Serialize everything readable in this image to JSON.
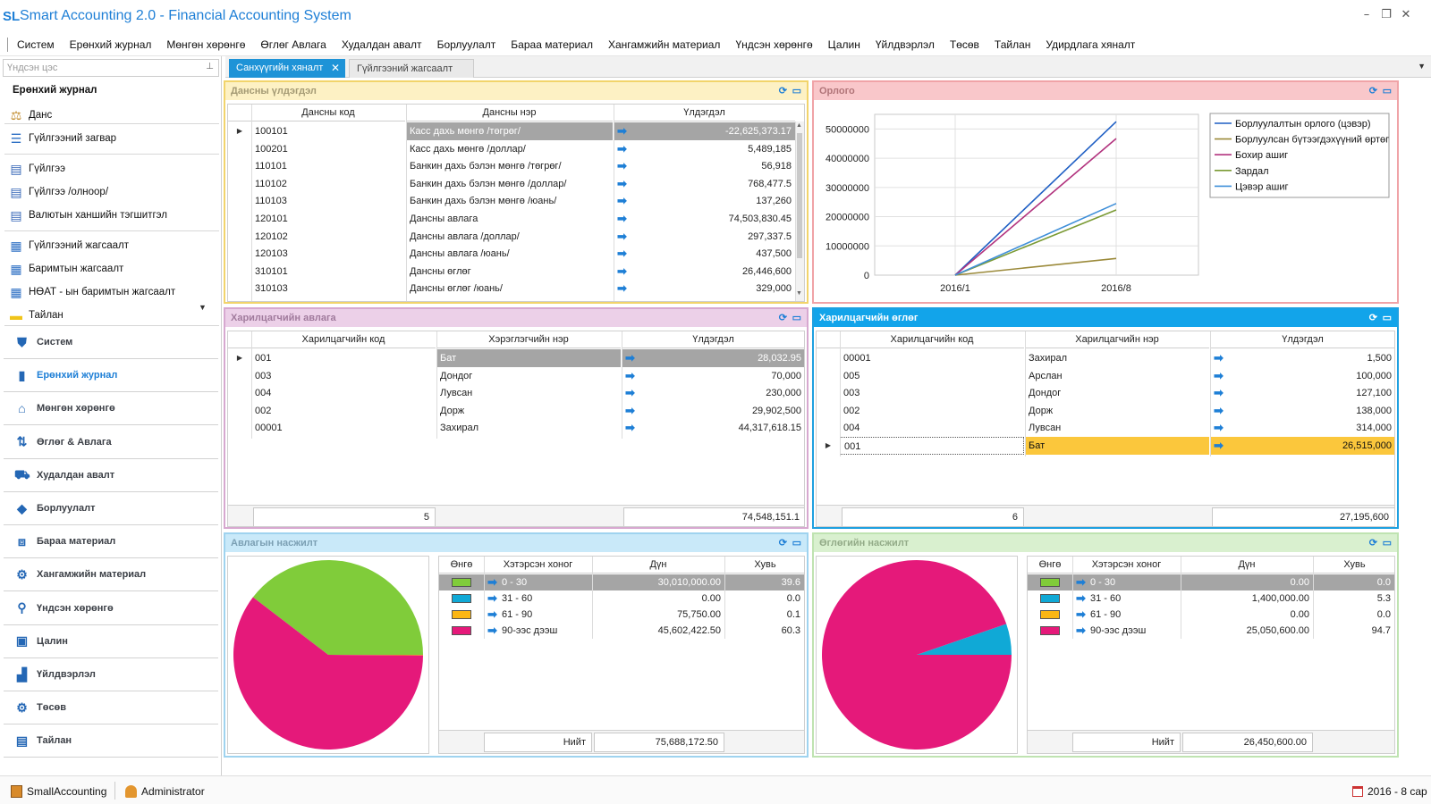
{
  "titlebar": {
    "logo": "SL",
    "title": "Smart Accounting 2.0 - Financial Accounting System"
  },
  "menu": [
    "Систем",
    "Ерөнхий журнал",
    "Мөнгөн хөрөнгө",
    "Өглөг Авлага",
    "Худалдан авалт",
    "Борлуулалт",
    "Бараа материал",
    "Хангамжийн материал",
    "Үндсэн хөрөнгө",
    "Цалин",
    "Үйлдвэрлэл",
    "Төсөв",
    "Тайлан",
    "Удирдлага хяналт"
  ],
  "sidebar": {
    "search_placeholder": "Үндсэн цэс",
    "group_title": "Ерөнхий журнал",
    "items": [
      {
        "label": "Данс",
        "icon": "scales-icon"
      },
      {
        "label": "Гүйлгээний загвар",
        "icon": "template-icon"
      },
      {
        "label": "Гүйлгээ",
        "icon": "document-icon"
      },
      {
        "label": "Гүйлгээ /олноор/",
        "icon": "document-icon"
      },
      {
        "label": "Валютын ханшийн тэгшитгэл",
        "icon": "document-icon"
      },
      {
        "label": "Гүйлгээний жагсаалт",
        "icon": "table-icon"
      },
      {
        "label": "Баримтын жагсаалт",
        "icon": "table-icon"
      },
      {
        "label": "НӨАТ - ын баримтын жагсаалт",
        "icon": "table-icon"
      },
      {
        "label": "Тайлан",
        "icon": "folder-icon"
      }
    ],
    "modules": [
      {
        "label": "Систем",
        "icon": "shield-icon",
        "active": false
      },
      {
        "label": "Ерөнхий журнал",
        "icon": "journal-icon",
        "active": true
      },
      {
        "label": "Мөнгөн хөрөнгө",
        "icon": "bank-icon",
        "active": false
      },
      {
        "label": "Өглөг & Авлага",
        "icon": "swap-icon",
        "active": false
      },
      {
        "label": "Худалдан авалт",
        "icon": "cart-icon",
        "active": false
      },
      {
        "label": "Борлуулалт",
        "icon": "tag-icon",
        "active": false
      },
      {
        "label": "Бараа материал",
        "icon": "boxes-icon",
        "active": false
      },
      {
        "label": "Хангамжийн материал",
        "icon": "gear-icon",
        "active": false
      },
      {
        "label": "Үндсэн хөрөнгө",
        "icon": "person-icon",
        "active": false
      },
      {
        "label": "Цалин",
        "icon": "payroll-icon",
        "active": false
      },
      {
        "label": "Үйлдвэрлэл",
        "icon": "factory-icon",
        "active": false
      },
      {
        "label": "Төсөв",
        "icon": "budget-icon",
        "active": false
      },
      {
        "label": "Тайлан",
        "icon": "report-icon",
        "active": false
      }
    ]
  },
  "tabs": [
    {
      "label": "Санхүүгийн хяналт",
      "active": true
    },
    {
      "label": "Гүйлгээний жагсаалт",
      "active": false
    }
  ],
  "account_balance": {
    "title": "Дансны үлдэгдэл",
    "columns": [
      "Дансны код",
      "Дансны нэр",
      "Үлдэгдэл"
    ],
    "rows": [
      {
        "code": "100101",
        "name": "Касс дахь мөнгө /төгрөг/",
        "value": "-22,625,373.17"
      },
      {
        "code": "100201",
        "name": "Касс дахь мөнгө /доллар/",
        "value": "5,489,185"
      },
      {
        "code": "110101",
        "name": "Банкин дахь бэлэн мөнгө /төгрөг/",
        "value": "56,918"
      },
      {
        "code": "110102",
        "name": "Банкин дахь бэлэн мөнгө /доллар/",
        "value": "768,477.5"
      },
      {
        "code": "110103",
        "name": "Банкин дахь бэлэн мөнгө /юань/",
        "value": "137,260"
      },
      {
        "code": "120101",
        "name": "Дансны авлага",
        "value": "74,503,830.45"
      },
      {
        "code": "120102",
        "name": "Дансны авлага /доллар/",
        "value": "297,337.5"
      },
      {
        "code": "120103",
        "name": "Дансны авлага /юань/",
        "value": "437,500"
      },
      {
        "code": "310101",
        "name": "Дансны өглөг",
        "value": "26,446,600"
      },
      {
        "code": "310103",
        "name": "Дансны өглөг /юань/",
        "value": "329,000"
      }
    ]
  },
  "income": {
    "title": "Орлого",
    "chart_data": {
      "type": "line",
      "x": [
        "2016/1",
        "2016/8"
      ],
      "ylim": [
        0,
        55000000
      ],
      "yticks": [
        "0",
        "10000000",
        "20000000",
        "30000000",
        "40000000",
        "50000000"
      ],
      "grid": true,
      "legend": "top-right",
      "series": [
        {
          "name": "Борлуулалтын орлого (цэвэр)",
          "color": "#1f5fc4",
          "values": [
            0,
            52500000
          ]
        },
        {
          "name": "Борлуулсан бүтээгдэхүүний өртөг",
          "color": "#9b8a3a",
          "values": [
            0,
            5700000
          ]
        },
        {
          "name": "Бохир ашиг",
          "color": "#b2337e",
          "values": [
            0,
            46700000
          ]
        },
        {
          "name": "Зардал",
          "color": "#7a9a34",
          "values": [
            0,
            22300000
          ]
        },
        {
          "name": "Цэвэр ашиг",
          "color": "#3f8fd9",
          "values": [
            0,
            24500000
          ]
        }
      ]
    }
  },
  "receivables": {
    "title": "Харилцагчийн авлага",
    "columns": [
      "Харилцагчийн код",
      "Хэрэглэгчийн нэр",
      "Үлдэгдэл"
    ],
    "rows": [
      {
        "code": "001",
        "name": "Бат",
        "value": "28,032.95"
      },
      {
        "code": "003",
        "name": "Дондог",
        "value": "70,000"
      },
      {
        "code": "004",
        "name": "Лувсан",
        "value": "230,000"
      },
      {
        "code": "002",
        "name": "Дорж",
        "value": "29,902,500"
      },
      {
        "code": "00001",
        "name": "Захирал",
        "value": "44,317,618.15"
      }
    ],
    "count": "5",
    "total": "74,548,151.1"
  },
  "payables": {
    "title": "Харилцагчийн өглөг",
    "columns": [
      "Харилцагчийн код",
      "Харилцагчийн нэр",
      "Үлдэгдэл"
    ],
    "rows": [
      {
        "code": "00001",
        "name": "Захирал",
        "value": "1,500"
      },
      {
        "code": "005",
        "name": "Арслан",
        "value": "100,000"
      },
      {
        "code": "003",
        "name": "Дондог",
        "value": "127,100"
      },
      {
        "code": "002",
        "name": "Дорж",
        "value": "138,000"
      },
      {
        "code": "004",
        "name": "Лувсан",
        "value": "314,000"
      },
      {
        "code": "001",
        "name": "Бат",
        "value": "26,515,000"
      }
    ],
    "count": "6",
    "total": "27,195,600"
  },
  "receivable_aging": {
    "title": "Авлагын насжилт",
    "columns": [
      "Өнгө",
      "Хэтэрсэн хоног",
      "Дүн",
      "Хувь"
    ],
    "rows": [
      {
        "color": "#80cc3a",
        "range": "0 - 30",
        "amount": "30,010,000.00",
        "pct": "39.6"
      },
      {
        "color": "#10a9d6",
        "range": "31 - 60",
        "amount": "0.00",
        "pct": "0.0"
      },
      {
        "color": "#fbb614",
        "range": "61 - 90",
        "amount": "75,750.00",
        "pct": "0.1"
      },
      {
        "color": "#e5197a",
        "range": "90-ээс дээш",
        "amount": "45,602,422.50",
        "pct": "60.3"
      }
    ],
    "total_label": "Нийт",
    "total": "75,688,172.50",
    "chart_data": {
      "type": "pie",
      "labels": [
        "0 - 30",
        "31 - 60",
        "61 - 90",
        "90-ээс дээш"
      ],
      "values": [
        39.6,
        0.0,
        0.1,
        60.3
      ],
      "colors": [
        "#80cc3a",
        "#10a9d6",
        "#fbb614",
        "#e5197a"
      ]
    }
  },
  "payable_aging": {
    "title": "Өглөгийн насжилт",
    "columns": [
      "Өнгө",
      "Хэтэрсэн хоног",
      "Дүн",
      "Хувь"
    ],
    "rows": [
      {
        "color": "#80cc3a",
        "range": "0 - 30",
        "amount": "0.00",
        "pct": "0.0"
      },
      {
        "color": "#10a9d6",
        "range": "31 - 60",
        "amount": "1,400,000.00",
        "pct": "5.3"
      },
      {
        "color": "#fbb614",
        "range": "61 - 90",
        "amount": "0.00",
        "pct": "0.0"
      },
      {
        "color": "#e5197a",
        "range": "90-ээс дээш",
        "amount": "25,050,600.00",
        "pct": "94.7"
      }
    ],
    "total_label": "Нийт",
    "total": "26,450,600.00",
    "chart_data": {
      "type": "pie",
      "labels": [
        "0 - 30",
        "31 - 60",
        "61 - 90",
        "90-ээс дээш"
      ],
      "values": [
        0.0,
        5.3,
        0.0,
        94.7
      ],
      "colors": [
        "#80cc3a",
        "#10a9d6",
        "#fbb614",
        "#e5197a"
      ]
    }
  },
  "status": {
    "company": "SmallAccounting",
    "user": "Administrator",
    "period": "2016 - 8 сар"
  }
}
